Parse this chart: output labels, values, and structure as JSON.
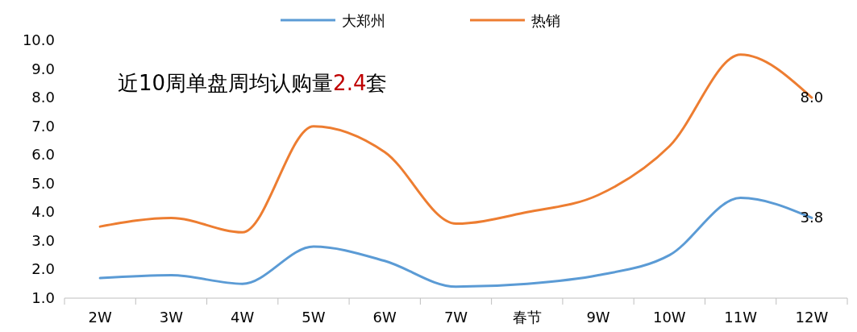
{
  "chart_data": {
    "type": "line",
    "categories": [
      "2W",
      "3W",
      "4W",
      "5W",
      "6W",
      "7W",
      "春节",
      "9W",
      "10W",
      "11W",
      "12W"
    ],
    "series": [
      {
        "name": "大郑州",
        "color": "#5b9bd5",
        "values": [
          1.7,
          1.8,
          1.5,
          2.8,
          2.3,
          1.4,
          1.5,
          1.8,
          2.5,
          4.5,
          3.8
        ],
        "value_labels": [
          null,
          null,
          null,
          null,
          null,
          null,
          null,
          null,
          null,
          null,
          "3.8"
        ]
      },
      {
        "name": "热销",
        "color": "#ed7d31",
        "values": [
          3.5,
          3.8,
          3.3,
          7.0,
          6.1,
          3.6,
          4.0,
          4.6,
          6.3,
          9.5,
          8.0
        ],
        "value_labels": [
          null,
          null,
          null,
          null,
          null,
          null,
          null,
          null,
          null,
          null,
          "8.0"
        ]
      }
    ],
    "ylim": [
      1,
      10
    ],
    "yticks": [
      {
        "value": 1,
        "label": "1.0"
      },
      {
        "value": 2,
        "label": "2.0"
      },
      {
        "value": 3,
        "label": "3.0"
      },
      {
        "value": 4,
        "label": "4.0"
      },
      {
        "value": 5,
        "label": "5.0"
      },
      {
        "value": 6,
        "label": "6.0"
      },
      {
        "value": 7,
        "label": "7.0"
      },
      {
        "value": 8,
        "label": "8.0"
      },
      {
        "value": 9,
        "label": "9.0"
      },
      {
        "value": 10,
        "label": "10.0"
      }
    ],
    "legend": "top",
    "grid": false,
    "marker": "none",
    "line_style": "solid",
    "annotations": [
      "近10周单盘周均认购量2.4套"
    ]
  }
}
